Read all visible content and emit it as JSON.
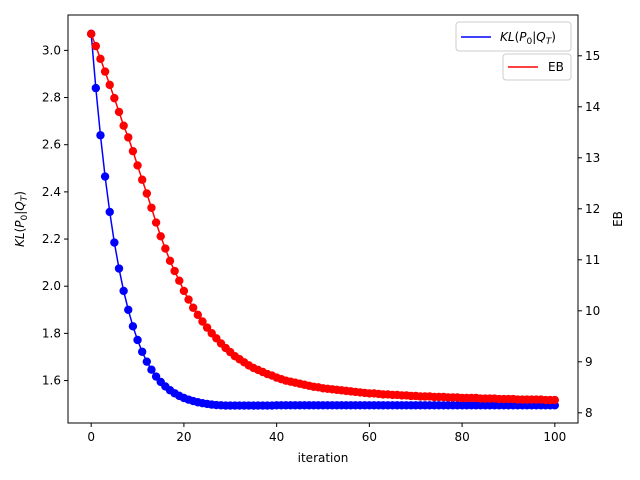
{
  "chart_data": {
    "type": "line",
    "xlabel": "iteration",
    "ylabel_left": "KL(P0|QT)",
    "ylabel_right": "EB",
    "xlim": [
      -5,
      105
    ],
    "ylim_left": [
      1.42,
      3.15
    ],
    "ylim_right": [
      7.8,
      15.8
    ],
    "x_ticks": [
      "0",
      "20",
      "40",
      "60",
      "80",
      "100"
    ],
    "y_left_ticks": [
      "1.6",
      "1.8",
      "2.0",
      "2.2",
      "2.4",
      "2.6",
      "2.8",
      "3.0"
    ],
    "y_right_ticks": [
      "8",
      "9",
      "10",
      "11",
      "12",
      "13",
      "14",
      "15"
    ],
    "grid": false,
    "series": [
      {
        "name": "KL(P0|QT)",
        "axis": "left",
        "color": "#0000ff",
        "x": [
          0,
          1,
          2,
          3,
          4,
          5,
          6,
          7,
          8,
          9,
          10,
          11,
          12,
          13,
          14,
          15,
          16,
          17,
          18,
          19,
          20,
          21,
          22,
          23,
          24,
          25,
          26,
          27,
          28,
          29,
          30,
          31,
          32,
          33,
          34,
          35,
          36,
          37,
          38,
          39,
          40,
          41,
          42,
          43,
          44,
          45,
          46,
          47,
          48,
          49,
          50,
          51,
          52,
          53,
          54,
          55,
          56,
          57,
          58,
          59,
          60,
          61,
          62,
          63,
          64,
          65,
          66,
          67,
          68,
          69,
          70,
          71,
          72,
          73,
          74,
          75,
          76,
          77,
          78,
          79,
          80,
          81,
          82,
          83,
          84,
          85,
          86,
          87,
          88,
          89,
          90,
          91,
          92,
          93,
          94,
          95,
          96,
          97,
          98,
          99,
          100
        ],
        "values": [
          3.07,
          2.84,
          2.64,
          2.465,
          2.315,
          2.185,
          2.075,
          1.98,
          1.9,
          1.83,
          1.772,
          1.722,
          1.68,
          1.646,
          1.617,
          1.594,
          1.575,
          1.559,
          1.546,
          1.535,
          1.526,
          1.519,
          1.513,
          1.508,
          1.504,
          1.501,
          1.498,
          1.496,
          1.495,
          1.494,
          1.494,
          1.494,
          1.494,
          1.494,
          1.494,
          1.494,
          1.494,
          1.494,
          1.494,
          1.494,
          1.495,
          1.495,
          1.495,
          1.495,
          1.495,
          1.495,
          1.495,
          1.495,
          1.495,
          1.495,
          1.495,
          1.495,
          1.495,
          1.495,
          1.495,
          1.495,
          1.495,
          1.495,
          1.495,
          1.495,
          1.495,
          1.495,
          1.495,
          1.495,
          1.495,
          1.495,
          1.495,
          1.495,
          1.495,
          1.495,
          1.495,
          1.495,
          1.495,
          1.495,
          1.495,
          1.495,
          1.495,
          1.495,
          1.495,
          1.495,
          1.495,
          1.495,
          1.495,
          1.495,
          1.495,
          1.495,
          1.495,
          1.495,
          1.495,
          1.495,
          1.495,
          1.495,
          1.495,
          1.495,
          1.495,
          1.495,
          1.495,
          1.495,
          1.495,
          1.495,
          1.495
        ]
      },
      {
        "name": "EB",
        "axis": "right",
        "color": "#ff0000",
        "x": [
          0,
          1,
          2,
          3,
          4,
          5,
          6,
          7,
          8,
          9,
          10,
          11,
          12,
          13,
          14,
          15,
          16,
          17,
          18,
          19,
          20,
          21,
          22,
          23,
          24,
          25,
          26,
          27,
          28,
          29,
          30,
          31,
          32,
          33,
          34,
          35,
          36,
          37,
          38,
          39,
          40,
          41,
          42,
          43,
          44,
          45,
          46,
          47,
          48,
          49,
          50,
          51,
          52,
          53,
          54,
          55,
          56,
          57,
          58,
          59,
          60,
          61,
          62,
          63,
          64,
          65,
          66,
          67,
          68,
          69,
          70,
          71,
          72,
          73,
          74,
          75,
          76,
          77,
          78,
          79,
          80,
          81,
          82,
          83,
          84,
          85,
          86,
          87,
          88,
          89,
          90,
          91,
          92,
          93,
          94,
          95,
          96,
          97,
          98,
          99,
          100
        ],
        "values": [
          15.43,
          15.19,
          14.94,
          14.69,
          14.43,
          14.17,
          13.9,
          13.63,
          13.4,
          13.13,
          12.85,
          12.57,
          12.3,
          12.02,
          11.73,
          11.46,
          11.22,
          10.98,
          10.78,
          10.59,
          10.39,
          10.22,
          10.06,
          9.92,
          9.79,
          9.67,
          9.56,
          9.46,
          9.36,
          9.27,
          9.19,
          9.11,
          9.05,
          8.99,
          8.93,
          8.88,
          8.84,
          8.8,
          8.76,
          8.73,
          8.69,
          8.66,
          8.63,
          8.61,
          8.59,
          8.57,
          8.55,
          8.53,
          8.51,
          8.5,
          8.48,
          8.47,
          8.46,
          8.45,
          8.44,
          8.43,
          8.42,
          8.41,
          8.4,
          8.39,
          8.38,
          8.38,
          8.37,
          8.36,
          8.36,
          8.35,
          8.35,
          8.34,
          8.34,
          8.33,
          8.33,
          8.32,
          8.32,
          8.32,
          8.31,
          8.31,
          8.31,
          8.3,
          8.3,
          8.3,
          8.29,
          8.29,
          8.29,
          8.29,
          8.28,
          8.28,
          8.28,
          8.28,
          8.27,
          8.27,
          8.27,
          8.27,
          8.26,
          8.26,
          8.26,
          8.26,
          8.26,
          8.26,
          8.25,
          8.25,
          8.25
        ]
      }
    ],
    "legends": [
      {
        "label": "KL(P0|QT)",
        "color": "#0000ff",
        "placement": "top-right"
      },
      {
        "label": "EB",
        "color": "#ff0000",
        "placement": "top-right, below first legend"
      }
    ]
  }
}
